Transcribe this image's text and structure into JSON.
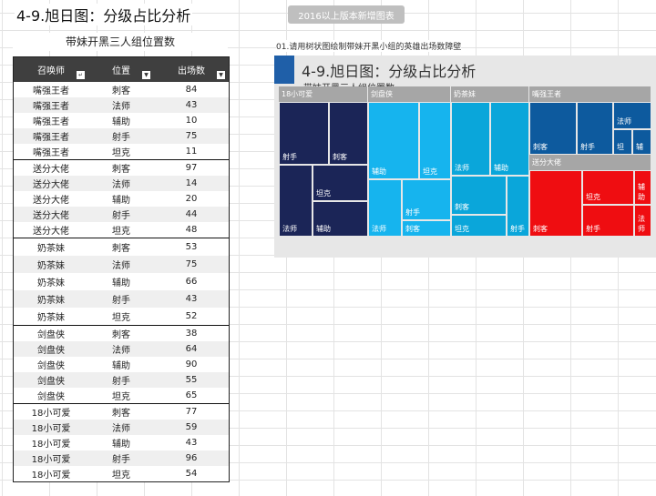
{
  "page": {
    "title": "4-9.旭日图：分级占比分析",
    "version_button": "2016以上版本新增图表",
    "table_caption": "带妹开黑三人组位置数",
    "instruction": "01.请用树状图绘制带妹开黑小组的英雄出场数障壁"
  },
  "table": {
    "headers": [
      "召唤师",
      "位置",
      "出场数"
    ],
    "filter_icon": "filter-dropdown-icon",
    "groups": [
      {
        "name": "嘴强王者",
        "rows": [
          [
            "嘴强王者",
            "刺客",
            "84"
          ],
          [
            "嘴强王者",
            "法师",
            "43"
          ],
          [
            "嘴强王者",
            "辅助",
            "10"
          ],
          [
            "嘴强王者",
            "射手",
            "75"
          ],
          [
            "嘴强王者",
            "坦克",
            "11"
          ]
        ]
      },
      {
        "name": "送分大佬",
        "rows": [
          [
            "送分大佬",
            "刺客",
            "97"
          ],
          [
            "送分大佬",
            "法师",
            "14"
          ],
          [
            "送分大佬",
            "辅助",
            "20"
          ],
          [
            "送分大佬",
            "射手",
            "44"
          ],
          [
            "送分大佬",
            "坦克",
            "48"
          ]
        ]
      },
      {
        "name": "奶茶妹",
        "rows": [
          [
            "奶茶妹",
            "刺客",
            "53"
          ],
          [
            "奶茶妹",
            "法师",
            "75"
          ],
          [
            "奶茶妹",
            "辅助",
            "66"
          ],
          [
            "奶茶妹",
            "射手",
            "43"
          ],
          [
            "奶茶妹",
            "坦克",
            "52"
          ]
        ]
      },
      {
        "name": "剑盘侠",
        "rows": [
          [
            "剑盘侠",
            "刺客",
            "38"
          ],
          [
            "剑盘侠",
            "法师",
            "64"
          ],
          [
            "剑盘侠",
            "辅助",
            "90"
          ],
          [
            "剑盘侠",
            "射手",
            "55"
          ],
          [
            "剑盘侠",
            "坦克",
            "65"
          ]
        ]
      },
      {
        "name": "18小可爱",
        "rows": [
          [
            "18小可爱",
            "刺客",
            "77"
          ],
          [
            "18小可爱",
            "法师",
            "59"
          ],
          [
            "18小可爱",
            "辅助",
            "43"
          ],
          [
            "18小可爱",
            "射手",
            "96"
          ],
          [
            "18小可爱",
            "坦克",
            "54"
          ]
        ]
      }
    ]
  },
  "chart": {
    "title": "4-9.旭日图：分级占比分析",
    "subtitle": "带妹开黑三人组位置数",
    "colors": {
      "18小可爱": "#1b2557",
      "剑盘侠": "#16b4ee",
      "奶茶妹": "#0aa6da",
      "嘴强王者": "#0d5a9e",
      "送分大佬": "#ef0d11",
      "header": "#a6a6a6"
    },
    "groups": [
      {
        "name": "18小可爱",
        "tiles": [
          {
            "label": "射手"
          },
          {
            "label": "刺客"
          },
          {
            "label": "法师"
          },
          {
            "label": "坦克"
          },
          {
            "label": "辅助"
          }
        ]
      },
      {
        "name": "剑盘侠",
        "tiles": [
          {
            "label": "辅助"
          },
          {
            "label": "坦克"
          },
          {
            "label": "法师"
          },
          {
            "label": "射手"
          },
          {
            "label": "刺客"
          }
        ]
      },
      {
        "name": "奶茶妹",
        "tiles": [
          {
            "label": "法师"
          },
          {
            "label": "辅助"
          },
          {
            "label": "刺客"
          },
          {
            "label": "坦克"
          },
          {
            "label": "射手"
          }
        ]
      },
      {
        "name": "嘴强王者",
        "tiles": [
          {
            "label": "刺客"
          },
          {
            "label": "射手"
          },
          {
            "label": "法师"
          },
          {
            "label": "坦"
          },
          {
            "label": "辅"
          }
        ]
      },
      {
        "name": "送分大佬",
        "tiles": [
          {
            "label": "刺客"
          },
          {
            "label": "射手"
          },
          {
            "label": "坦克"
          },
          {
            "label": "辅助"
          },
          {
            "label": "法师"
          }
        ]
      }
    ]
  }
}
